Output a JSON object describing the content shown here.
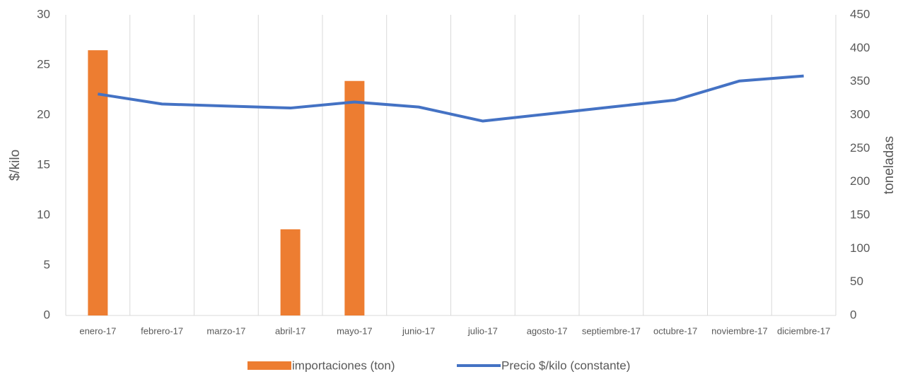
{
  "chart_data": {
    "type": "bar-line",
    "categories": [
      "enero-17",
      "febrero-17",
      "marzo-17",
      "abril-17",
      "mayo-17",
      "junio-17",
      "julio-17",
      "agosto-17",
      "septiembre-17",
      "octubre-17",
      "noviembre-17",
      "diciembre-17"
    ],
    "series": [
      {
        "name": "importaciones (ton)",
        "type": "bar",
        "axis": "y2",
        "color": "#ed7d31",
        "values": [
          397,
          null,
          null,
          129,
          351,
          null,
          null,
          null,
          null,
          null,
          null,
          null
        ]
      },
      {
        "name": "Precio $/kilo (constante)",
        "type": "line",
        "axis": "y",
        "color": "#4472c4",
        "values": [
          22.1,
          21.1,
          20.9,
          20.7,
          21.3,
          20.8,
          19.4,
          20.1,
          20.8,
          21.5,
          23.4,
          23.9
        ]
      }
    ],
    "ylabel": "$/kilo",
    "y2label": "toneladas",
    "ylim": [
      0,
      30
    ],
    "yticks": [
      0,
      5,
      10,
      15,
      20,
      25,
      30
    ],
    "y2lim": [
      0,
      450
    ],
    "y2ticks": [
      0,
      50,
      100,
      150,
      200,
      250,
      300,
      350,
      400,
      450
    ],
    "grid": true,
    "legend": "bottom"
  }
}
